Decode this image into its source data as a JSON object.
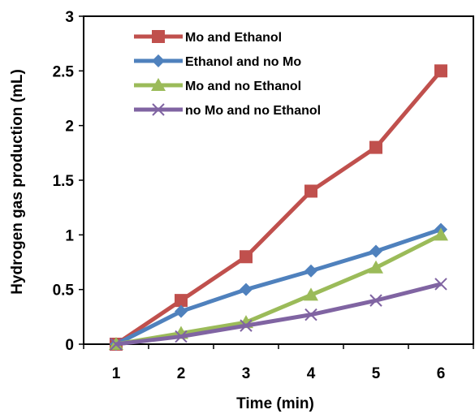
{
  "chart_data": {
    "type": "line",
    "title": "",
    "xlabel": "Time (min)",
    "ylabel": "Hydrogen gas production (mL)",
    "x": [
      1,
      2,
      3,
      4,
      5,
      6
    ],
    "x_ticks": [
      "1",
      "2",
      "3",
      "4",
      "5",
      "6"
    ],
    "xlim": [
      0.5,
      6.5
    ],
    "ylim": [
      0,
      3
    ],
    "y_ticks": [
      "0",
      "0.5",
      "1",
      "1.5",
      "2",
      "2.5",
      "3"
    ],
    "grid": false,
    "legend_position": "top-left",
    "series": [
      {
        "name": "Mo and Ethanol",
        "color": "#c0504d",
        "marker": "square",
        "values": [
          0,
          0.4,
          0.8,
          1.4,
          1.8,
          2.5
        ]
      },
      {
        "name": "Ethanol and no Mo",
        "color": "#4f81bd",
        "marker": "diamond",
        "values": [
          0,
          0.3,
          0.5,
          0.67,
          0.85,
          1.05
        ]
      },
      {
        "name": "Mo and no Ethanol",
        "color": "#9bbb59",
        "marker": "triangle",
        "values": [
          0,
          0.1,
          0.2,
          0.45,
          0.7,
          1.0
        ]
      },
      {
        "name": "no Mo and no Ethanol",
        "color": "#8064a2",
        "marker": "x",
        "values": [
          0,
          0.07,
          0.17,
          0.27,
          0.4,
          0.55
        ]
      }
    ]
  }
}
